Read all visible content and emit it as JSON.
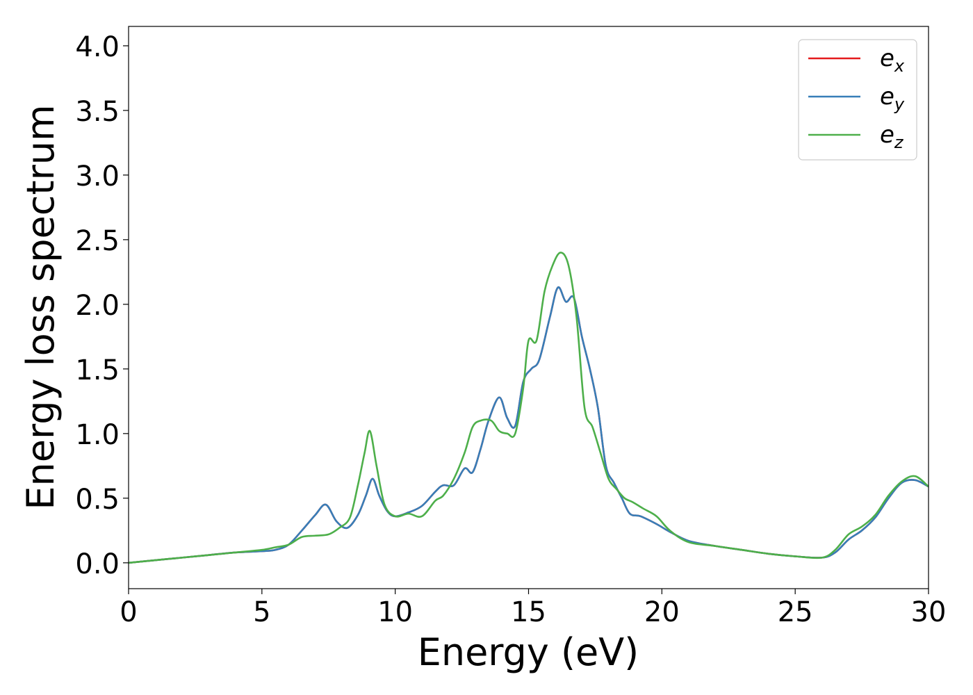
{
  "chart_data": {
    "type": "line",
    "xlabel": "Energy (eV)",
    "ylabel": "Energy loss spectrum",
    "xlim": [
      0,
      30
    ],
    "ylim": [
      -0.2,
      4.15
    ],
    "xticks": [
      0,
      5,
      10,
      15,
      20,
      25,
      30
    ],
    "xtick_labels": [
      "0",
      "5",
      "10",
      "15",
      "20",
      "25",
      "30"
    ],
    "yticks": [
      0.0,
      0.5,
      1.0,
      1.5,
      2.0,
      2.5,
      3.0,
      3.5,
      4.0
    ],
    "ytick_labels": [
      "0.0",
      "0.5",
      "1.0",
      "1.5",
      "2.0",
      "2.5",
      "3.0",
      "3.5",
      "4.0"
    ],
    "grid": false,
    "legend_position": "top-right",
    "series": [
      {
        "name": "e_x",
        "legend_base": "e",
        "legend_sub": "x",
        "color": "#e41a1c",
        "x": [
          0,
          1,
          2,
          3,
          4,
          5,
          5.5,
          6,
          6.5,
          7,
          7.4,
          7.8,
          8.2,
          8.6,
          8.9,
          9.15,
          9.4,
          9.7,
          10,
          10.5,
          11,
          11.5,
          11.8,
          12.2,
          12.6,
          12.9,
          13.2,
          13.5,
          13.9,
          14.2,
          14.5,
          14.8,
          15.1,
          15.4,
          15.8,
          16.1,
          16.4,
          16.7,
          17,
          17.3,
          17.6,
          17.9,
          18.2,
          18.5,
          18.8,
          19.2,
          19.8,
          20.3,
          21,
          22,
          23,
          24,
          25,
          26,
          26.5,
          27,
          27.5,
          28,
          28.5,
          29,
          29.5,
          30
        ],
        "values": [
          0.0,
          0.02,
          0.04,
          0.06,
          0.08,
          0.09,
          0.1,
          0.14,
          0.25,
          0.37,
          0.45,
          0.32,
          0.27,
          0.37,
          0.52,
          0.65,
          0.52,
          0.4,
          0.36,
          0.39,
          0.44,
          0.55,
          0.6,
          0.6,
          0.73,
          0.7,
          0.88,
          1.1,
          1.28,
          1.12,
          1.06,
          1.4,
          1.5,
          1.57,
          1.9,
          2.13,
          2.02,
          2.05,
          1.75,
          1.5,
          1.2,
          0.75,
          0.62,
          0.5,
          0.38,
          0.36,
          0.3,
          0.24,
          0.17,
          0.13,
          0.1,
          0.07,
          0.05,
          0.04,
          0.08,
          0.18,
          0.25,
          0.35,
          0.5,
          0.62,
          0.64,
          0.59
        ]
      },
      {
        "name": "e_y",
        "legend_base": "e",
        "legend_sub": "y",
        "color": "#377eb8",
        "x": [
          0,
          1,
          2,
          3,
          4,
          5,
          5.5,
          6,
          6.5,
          7,
          7.4,
          7.8,
          8.2,
          8.6,
          8.9,
          9.15,
          9.4,
          9.7,
          10,
          10.5,
          11,
          11.5,
          11.8,
          12.2,
          12.6,
          12.9,
          13.2,
          13.5,
          13.9,
          14.2,
          14.5,
          14.8,
          15.1,
          15.4,
          15.8,
          16.1,
          16.4,
          16.7,
          17,
          17.3,
          17.6,
          17.9,
          18.2,
          18.5,
          18.8,
          19.2,
          19.8,
          20.3,
          21,
          22,
          23,
          24,
          25,
          26,
          26.5,
          27,
          27.5,
          28,
          28.5,
          29,
          29.5,
          30
        ],
        "values": [
          0.0,
          0.02,
          0.04,
          0.06,
          0.08,
          0.09,
          0.1,
          0.14,
          0.25,
          0.37,
          0.45,
          0.32,
          0.27,
          0.37,
          0.52,
          0.65,
          0.52,
          0.4,
          0.36,
          0.39,
          0.44,
          0.55,
          0.6,
          0.6,
          0.73,
          0.7,
          0.88,
          1.1,
          1.28,
          1.12,
          1.06,
          1.4,
          1.5,
          1.57,
          1.9,
          2.13,
          2.02,
          2.05,
          1.75,
          1.5,
          1.2,
          0.75,
          0.62,
          0.5,
          0.38,
          0.36,
          0.3,
          0.24,
          0.17,
          0.13,
          0.1,
          0.07,
          0.05,
          0.04,
          0.08,
          0.18,
          0.25,
          0.35,
          0.5,
          0.62,
          0.64,
          0.59
        ]
      },
      {
        "name": "e_z",
        "legend_base": "e",
        "legend_sub": "z",
        "color": "#4daf4a",
        "x": [
          0,
          1,
          2,
          3,
          4,
          5,
          5.5,
          6,
          6.5,
          7,
          7.5,
          7.9,
          8.3,
          8.6,
          8.85,
          9.05,
          9.3,
          9.6,
          10,
          10.5,
          11,
          11.5,
          11.8,
          12.2,
          12.6,
          12.9,
          13.2,
          13.6,
          13.9,
          14.2,
          14.5,
          14.8,
          15.0,
          15.3,
          15.6,
          15.9,
          16.2,
          16.5,
          16.8,
          17.1,
          17.4,
          17.7,
          18.0,
          18.3,
          18.6,
          18.9,
          19.3,
          19.8,
          20.3,
          21,
          22,
          23,
          24,
          25,
          26,
          26.5,
          27,
          27.5,
          28,
          28.5,
          29,
          29.5,
          30
        ],
        "values": [
          0.0,
          0.02,
          0.04,
          0.06,
          0.08,
          0.1,
          0.12,
          0.14,
          0.2,
          0.21,
          0.22,
          0.27,
          0.35,
          0.6,
          0.85,
          1.02,
          0.75,
          0.45,
          0.36,
          0.38,
          0.36,
          0.48,
          0.52,
          0.65,
          0.85,
          1.05,
          1.1,
          1.1,
          1.02,
          1.0,
          1.0,
          1.35,
          1.72,
          1.72,
          2.1,
          2.3,
          2.4,
          2.3,
          1.9,
          1.2,
          1.05,
          0.85,
          0.65,
          0.57,
          0.5,
          0.47,
          0.42,
          0.36,
          0.25,
          0.16,
          0.13,
          0.1,
          0.07,
          0.05,
          0.04,
          0.1,
          0.22,
          0.28,
          0.37,
          0.52,
          0.63,
          0.67,
          0.59
        ]
      }
    ]
  }
}
